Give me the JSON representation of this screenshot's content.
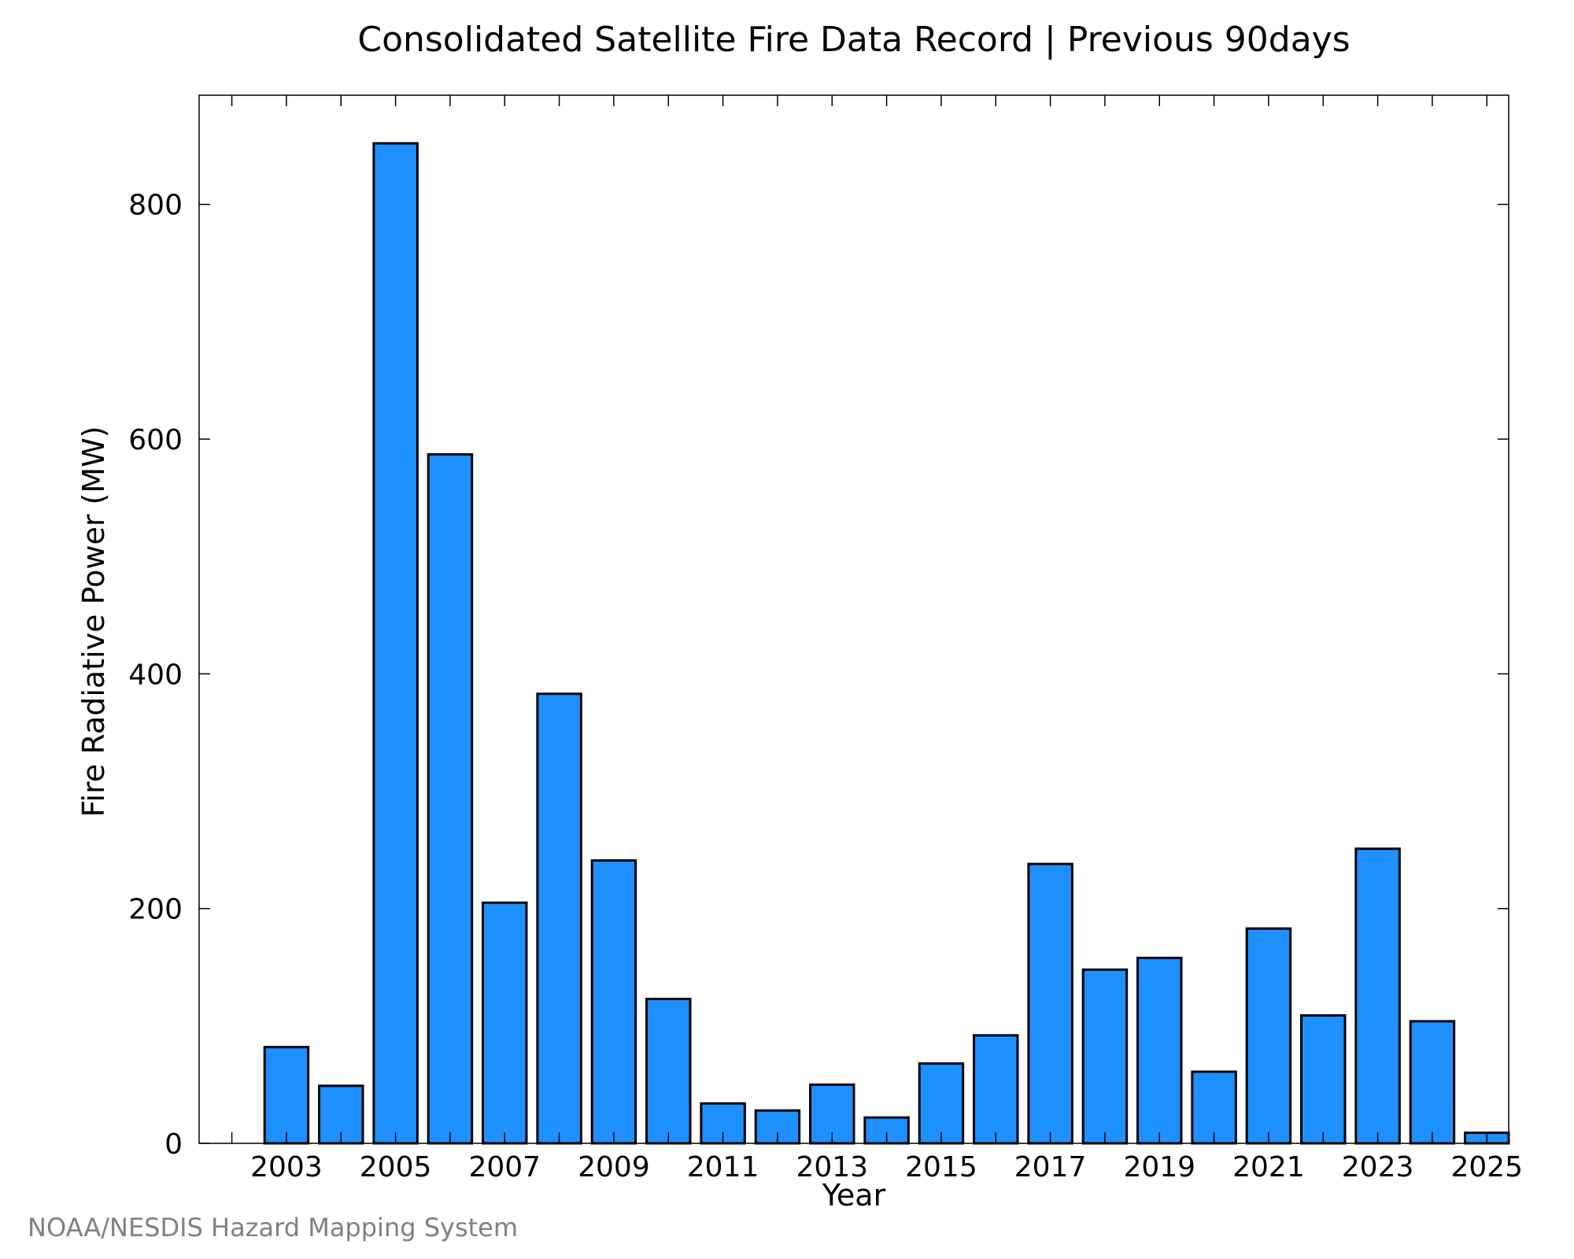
{
  "chart_data": {
    "type": "bar",
    "title": "Consolidated Satellite Fire Data Record | Previous 90days",
    "xlabel": "Year",
    "ylabel": "Fire Radiative Power (MW)",
    "x": [
      2003,
      2004,
      2005,
      2006,
      2007,
      2008,
      2009,
      2010,
      2011,
      2012,
      2013,
      2014,
      2015,
      2016,
      2017,
      2018,
      2019,
      2020,
      2021,
      2022,
      2023,
      2024,
      2025
    ],
    "values": [
      82,
      49,
      852,
      587,
      205,
      383,
      241,
      123,
      34,
      28,
      50,
      22,
      68,
      92,
      238,
      148,
      158,
      61,
      183,
      109,
      251,
      104,
      9
    ],
    "x_tick_labels": [
      "2003",
      "2005",
      "2007",
      "2009",
      "2011",
      "2013",
      "2015",
      "2017",
      "2019",
      "2021",
      "2023",
      "2025"
    ],
    "y_tick_labels": [
      "0",
      "200",
      "400",
      "600",
      "800"
    ],
    "y_ticks": [
      0,
      200,
      400,
      600,
      800
    ],
    "xlim": [
      2001.4,
      2025.4
    ],
    "ylim": [
      0,
      893
    ],
    "grid": false,
    "bar_color": "#1e90ff",
    "edge_color": "#000000"
  },
  "footer": {
    "credit": "NOAA/NESDIS Hazard Mapping System"
  }
}
